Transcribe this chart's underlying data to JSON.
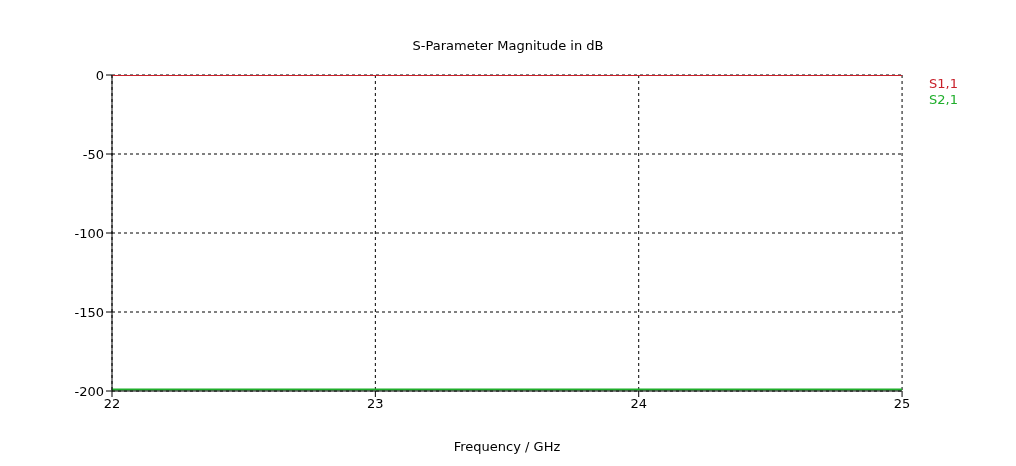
{
  "chart_data": {
    "type": "line",
    "title": "S-Parameter Magnitude in dB",
    "xlabel": "Frequency / GHz",
    "x": [
      22,
      25
    ],
    "series": [
      {
        "name": "S1,1",
        "color": "#c8202a",
        "values": [
          0,
          0
        ]
      },
      {
        "name": "S2,1",
        "color": "#1fae2b",
        "values": [
          -199,
          -199
        ]
      }
    ],
    "xlim": [
      22,
      25
    ],
    "xticks": [
      22,
      23,
      24,
      25
    ],
    "ylim": [
      -200,
      0
    ],
    "yticks": [
      -200,
      -150,
      -100,
      -50,
      0
    ],
    "grid": true,
    "legend": "right",
    "marker": "none",
    "line_style": "solid"
  }
}
